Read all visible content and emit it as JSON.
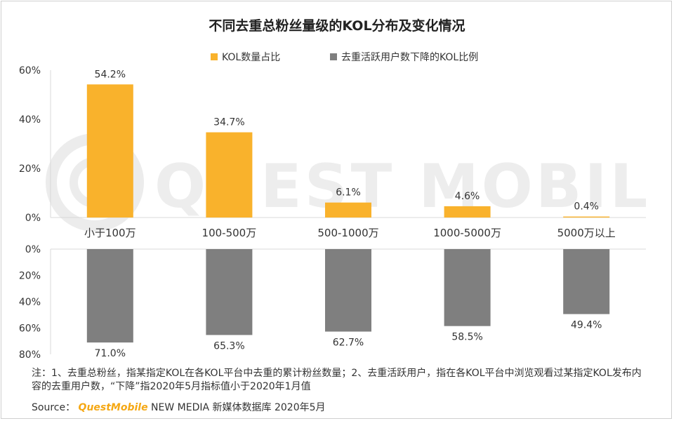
{
  "title": "不同去重总粉丝量级的KOL分布及变化情况",
  "colors": {
    "series1": "#F9B22C",
    "series2": "#7F7F7F"
  },
  "watermark": "QUEST MOBILE",
  "chart_data": {
    "type": "bar",
    "categories": [
      "小于100万",
      "100-500万",
      "500-1000万",
      "1000-5000万",
      "5000万以上"
    ],
    "series": [
      {
        "name": "KOL数量占比",
        "values": [
          54.2,
          34.7,
          6.1,
          4.6,
          0.4
        ],
        "labels": [
          "54.2%",
          "34.7%",
          "6.1%",
          "4.6%",
          "0.4%"
        ],
        "direction": "up"
      },
      {
        "name": "去重活跃用户数下降的KOL比例",
        "values": [
          71.0,
          65.3,
          62.7,
          58.5,
          49.4
        ],
        "labels": [
          "71.0%",
          "65.3%",
          "62.7%",
          "58.5%",
          "49.4%"
        ],
        "direction": "down"
      }
    ],
    "upper_axis": {
      "ylim": [
        0,
        60
      ],
      "ticks": [
        0,
        20,
        40,
        60
      ],
      "tick_labels": [
        "0%",
        "20%",
        "40%",
        "60%"
      ]
    },
    "lower_axis": {
      "ylim": [
        0,
        80
      ],
      "ticks": [
        0,
        20,
        40,
        60,
        80
      ],
      "tick_labels": [
        "0%",
        "20%",
        "40%",
        "60%",
        "80%"
      ]
    },
    "legend_position": "top"
  },
  "notes": "注：1、去重总粉丝，指某指定KOL在各KOL平台中去重的累计粉丝数量；2、去重活跃用户，指在各KOL平台中浏览观看过某指定KOL发布内容的去重用户数，“下降”指2020年5月指标值小于2020年1月值",
  "source": {
    "prefix": "Source：",
    "brand": "QuestMobile",
    "rest": " NEW MEDIA 新媒体数据库 2020年5月"
  }
}
